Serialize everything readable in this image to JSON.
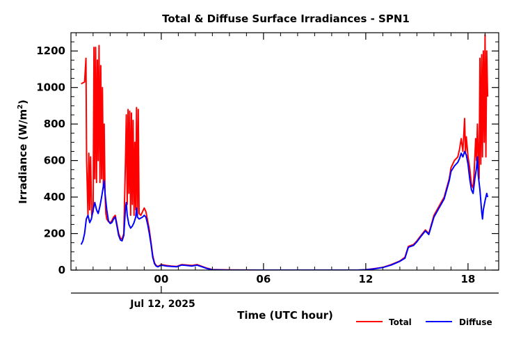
{
  "chart_data": {
    "type": "line",
    "title": "Total & Diffuse Surface Irradiances - SPN1",
    "xlabel": "Time (UTC hour)",
    "ylabel": "Irradiance (W/m",
    "ylabel_sup": "2",
    "ylabel_close": ")",
    "date_label": "Jul 12, 2025",
    "x_unit": "UTC hour relative to 00 on Jul 12, 2025",
    "xlim": [
      -5.3,
      19.8
    ],
    "ylim": [
      0,
      1300
    ],
    "x_ticks": [
      0,
      6,
      12,
      18
    ],
    "x_tick_labels": [
      "00",
      "06",
      "12",
      "18"
    ],
    "y_ticks": [
      0,
      200,
      400,
      600,
      800,
      1000,
      1200
    ],
    "y_tick_labels": [
      "0",
      "200",
      "400",
      "600",
      "800",
      "1000",
      "1200"
    ],
    "grid": false,
    "legend_position": "bottom-right",
    "series": [
      {
        "name": "Total",
        "color": "#ff0000",
        "points": [
          [
            -4.7,
            1020
          ],
          [
            -4.5,
            1030
          ],
          [
            -4.42,
            1160
          ],
          [
            -4.38,
            600
          ],
          [
            -4.3,
            300
          ],
          [
            -4.25,
            640
          ],
          [
            -4.2,
            330
          ],
          [
            -4.15,
            620
          ],
          [
            -4.08,
            300
          ],
          [
            -4.0,
            320
          ],
          [
            -3.95,
            1220
          ],
          [
            -3.9,
            500
          ],
          [
            -3.85,
            1220
          ],
          [
            -3.8,
            480
          ],
          [
            -3.75,
            1150
          ],
          [
            -3.7,
            600
          ],
          [
            -3.65,
            1230
          ],
          [
            -3.6,
            480
          ],
          [
            -3.55,
            1120
          ],
          [
            -3.5,
            500
          ],
          [
            -3.45,
            1000
          ],
          [
            -3.4,
            450
          ],
          [
            -3.35,
            800
          ],
          [
            -3.3,
            420
          ],
          [
            -3.25,
            310
          ],
          [
            -3.2,
            280
          ],
          [
            -3.1,
            265
          ],
          [
            -3.0,
            260
          ],
          [
            -2.9,
            270
          ],
          [
            -2.8,
            290
          ],
          [
            -2.7,
            300
          ],
          [
            -2.6,
            250
          ],
          [
            -2.5,
            200
          ],
          [
            -2.4,
            175
          ],
          [
            -2.3,
            170
          ],
          [
            -2.2,
            200
          ],
          [
            -2.1,
            600
          ],
          [
            -2.05,
            850
          ],
          [
            -2.0,
            360
          ],
          [
            -1.95,
            880
          ],
          [
            -1.9,
            420
          ],
          [
            -1.85,
            870
          ],
          [
            -1.8,
            300
          ],
          [
            -1.75,
            860
          ],
          [
            -1.7,
            360
          ],
          [
            -1.65,
            820
          ],
          [
            -1.6,
            300
          ],
          [
            -1.55,
            700
          ],
          [
            -1.5,
            330
          ],
          [
            -1.45,
            890
          ],
          [
            -1.4,
            300
          ],
          [
            -1.35,
            880
          ],
          [
            -1.3,
            310
          ],
          [
            -1.2,
            300
          ],
          [
            -1.1,
            320
          ],
          [
            -1.0,
            340
          ],
          [
            -0.9,
            320
          ],
          [
            -0.8,
            270
          ],
          [
            -0.7,
            220
          ],
          [
            -0.6,
            150
          ],
          [
            -0.5,
            80
          ],
          [
            -0.4,
            40
          ],
          [
            -0.3,
            25
          ],
          [
            -0.2,
            20
          ],
          [
            0.0,
            30
          ],
          [
            0.3,
            25
          ],
          [
            0.6,
            22
          ],
          [
            0.9,
            20
          ],
          [
            1.2,
            30
          ],
          [
            1.5,
            28
          ],
          [
            1.8,
            25
          ],
          [
            2.1,
            30
          ],
          [
            2.4,
            20
          ],
          [
            2.7,
            10
          ],
          [
            3.0,
            3
          ],
          [
            4.0,
            1
          ],
          [
            6.0,
            0
          ],
          [
            8.0,
            0
          ],
          [
            10.0,
            0
          ],
          [
            11.5,
            0
          ],
          [
            12.0,
            2
          ],
          [
            12.5,
            8
          ],
          [
            13.0,
            15
          ],
          [
            13.5,
            30
          ],
          [
            14.0,
            50
          ],
          [
            14.3,
            70
          ],
          [
            14.5,
            130
          ],
          [
            14.8,
            140
          ],
          [
            15.0,
            160
          ],
          [
            15.2,
            185
          ],
          [
            15.5,
            220
          ],
          [
            15.7,
            200
          ],
          [
            16.0,
            300
          ],
          [
            16.3,
            350
          ],
          [
            16.6,
            400
          ],
          [
            16.9,
            500
          ],
          [
            17.0,
            560
          ],
          [
            17.2,
            600
          ],
          [
            17.4,
            620
          ],
          [
            17.5,
            660
          ],
          [
            17.6,
            720
          ],
          [
            17.7,
            650
          ],
          [
            17.8,
            830
          ],
          [
            17.85,
            640
          ],
          [
            17.9,
            730
          ],
          [
            18.0,
            620
          ],
          [
            18.1,
            560
          ],
          [
            18.2,
            470
          ],
          [
            18.3,
            450
          ],
          [
            18.35,
            520
          ],
          [
            18.45,
            720
          ],
          [
            18.5,
            600
          ],
          [
            18.55,
            800
          ],
          [
            18.6,
            620
          ],
          [
            18.65,
            500
          ],
          [
            18.7,
            1160
          ],
          [
            18.75,
            580
          ],
          [
            18.8,
            1180
          ],
          [
            18.85,
            620
          ],
          [
            18.9,
            1200
          ],
          [
            18.95,
            700
          ],
          [
            19.0,
            1290
          ],
          [
            19.05,
            620
          ],
          [
            19.1,
            1200
          ],
          [
            19.15,
            950
          ]
        ]
      },
      {
        "name": "Diffuse",
        "color": "#0000ff",
        "points": [
          [
            -4.7,
            140
          ],
          [
            -4.6,
            160
          ],
          [
            -4.5,
            200
          ],
          [
            -4.4,
            280
          ],
          [
            -4.3,
            300
          ],
          [
            -4.2,
            260
          ],
          [
            -4.1,
            280
          ],
          [
            -4.0,
            330
          ],
          [
            -3.9,
            370
          ],
          [
            -3.8,
            330
          ],
          [
            -3.7,
            310
          ],
          [
            -3.6,
            350
          ],
          [
            -3.5,
            400
          ],
          [
            -3.4,
            460
          ],
          [
            -3.35,
            490
          ],
          [
            -3.3,
            420
          ],
          [
            -3.2,
            330
          ],
          [
            -3.1,
            270
          ],
          [
            -3.0,
            255
          ],
          [
            -2.9,
            260
          ],
          [
            -2.8,
            280
          ],
          [
            -2.7,
            290
          ],
          [
            -2.6,
            240
          ],
          [
            -2.5,
            190
          ],
          [
            -2.4,
            165
          ],
          [
            -2.3,
            160
          ],
          [
            -2.2,
            190
          ],
          [
            -2.1,
            340
          ],
          [
            -2.05,
            370
          ],
          [
            -2.0,
            300
          ],
          [
            -1.9,
            250
          ],
          [
            -1.8,
            230
          ],
          [
            -1.7,
            240
          ],
          [
            -1.6,
            260
          ],
          [
            -1.5,
            290
          ],
          [
            -1.45,
            340
          ],
          [
            -1.4,
            290
          ],
          [
            -1.3,
            280
          ],
          [
            -1.2,
            285
          ],
          [
            -1.1,
            290
          ],
          [
            -1.0,
            300
          ],
          [
            -0.9,
            290
          ],
          [
            -0.8,
            250
          ],
          [
            -0.7,
            200
          ],
          [
            -0.6,
            140
          ],
          [
            -0.5,
            70
          ],
          [
            -0.4,
            35
          ],
          [
            -0.3,
            22
          ],
          [
            -0.2,
            18
          ],
          [
            0.0,
            27
          ],
          [
            0.3,
            22
          ],
          [
            0.6,
            20
          ],
          [
            0.9,
            18
          ],
          [
            1.2,
            28
          ],
          [
            1.5,
            25
          ],
          [
            1.8,
            22
          ],
          [
            2.1,
            27
          ],
          [
            2.4,
            18
          ],
          [
            2.7,
            8
          ],
          [
            3.0,
            2
          ],
          [
            4.0,
            0
          ],
          [
            6.0,
            0
          ],
          [
            8.0,
            0
          ],
          [
            10.0,
            0
          ],
          [
            11.5,
            0
          ],
          [
            12.0,
            2
          ],
          [
            12.5,
            7
          ],
          [
            13.0,
            14
          ],
          [
            13.5,
            28
          ],
          [
            14.0,
            48
          ],
          [
            14.3,
            65
          ],
          [
            14.5,
            125
          ],
          [
            14.8,
            135
          ],
          [
            15.0,
            155
          ],
          [
            15.2,
            180
          ],
          [
            15.5,
            215
          ],
          [
            15.7,
            195
          ],
          [
            16.0,
            290
          ],
          [
            16.3,
            340
          ],
          [
            16.6,
            390
          ],
          [
            16.9,
            490
          ],
          [
            17.0,
            540
          ],
          [
            17.2,
            570
          ],
          [
            17.4,
            590
          ],
          [
            17.5,
            610
          ],
          [
            17.6,
            640
          ],
          [
            17.7,
            620
          ],
          [
            17.8,
            650
          ],
          [
            17.9,
            630
          ],
          [
            18.0,
            580
          ],
          [
            18.1,
            500
          ],
          [
            18.2,
            440
          ],
          [
            18.3,
            420
          ],
          [
            18.4,
            500
          ],
          [
            18.5,
            560
          ],
          [
            18.55,
            620
          ],
          [
            18.6,
            520
          ],
          [
            18.7,
            440
          ],
          [
            18.8,
            320
          ],
          [
            18.85,
            280
          ],
          [
            18.9,
            330
          ],
          [
            19.0,
            380
          ],
          [
            19.1,
            420
          ],
          [
            19.15,
            400
          ]
        ]
      }
    ]
  }
}
